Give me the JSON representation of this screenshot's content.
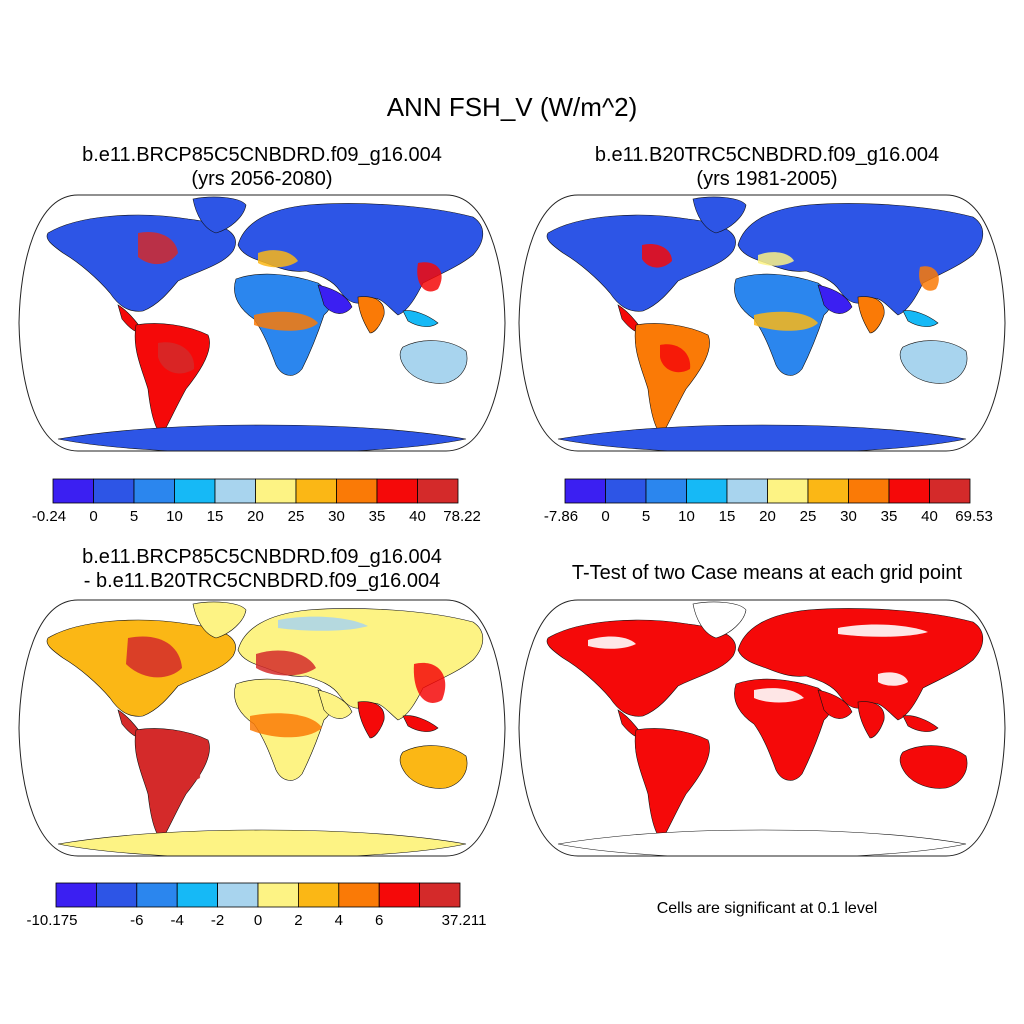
{
  "title": "ANN FSH_V (W/m^2)",
  "colors": {
    "scale": [
      "#3b1ff2",
      "#2d55e6",
      "#2b86ee",
      "#16b9f6",
      "#a8d4ee",
      "#fdf384",
      "#fbb715",
      "#fa7a06",
      "#f50909",
      "#d42a2a"
    ],
    "land_blue": "#3055e3",
    "land_yellow": "#fcee8a",
    "sig_red": "#f20a0a"
  },
  "panels": [
    {
      "title_line1": "b.e11.BRCP85C5CNBDRD.f09_g16.004",
      "title_line2": "(yrs 2056-2080)",
      "colorbar_labels": [
        "-0.24",
        "0",
        "5",
        "10",
        "15",
        "20",
        "25",
        "30",
        "35",
        "40",
        "78.22"
      ]
    },
    {
      "title_line1": "b.e11.B20TRC5CNBDRD.f09_g16.004",
      "title_line2": "(yrs 1981-2005)",
      "colorbar_labels": [
        "-7.86",
        "0",
        "5",
        "10",
        "15",
        "20",
        "25",
        "30",
        "35",
        "40",
        "69.53"
      ]
    },
    {
      "title_line1": "b.e11.BRCP85C5CNBDRD.f09_g16.004",
      "title_line2": "- b.e11.B20TRC5CNBDRD.f09_g16.004",
      "colorbar_labels": [
        "-10.175",
        "-6",
        "-4",
        "-2",
        "0",
        "2",
        "4",
        "6",
        "37.211"
      ]
    },
    {
      "title_line1": "T-Test of two Case means at each grid point",
      "note": "Cells are significant at 0.1 level"
    }
  ]
}
